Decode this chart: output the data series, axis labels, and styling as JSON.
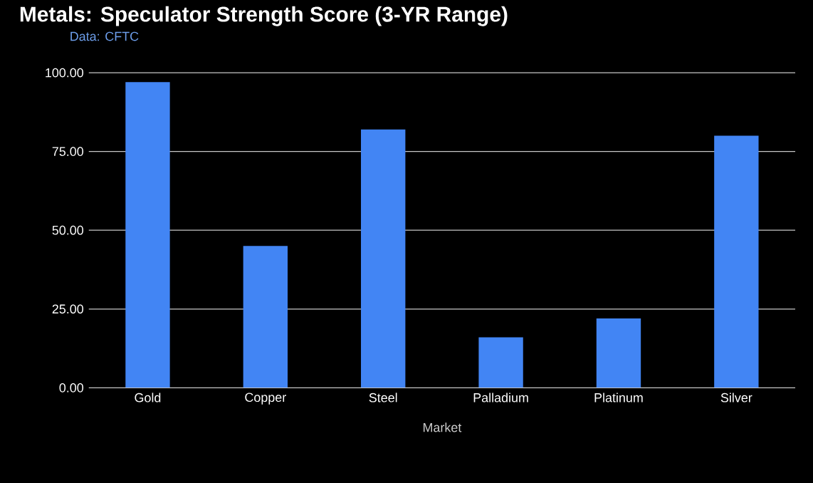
{
  "chart_data": {
    "type": "bar",
    "title": "Metals: Speculator Strength Score (3-YR Range)",
    "annotations": [
      "Data: CFTC"
    ],
    "xlabel": "Market",
    "categories": [
      "Gold",
      "Copper",
      "Steel",
      "Palladium",
      "Platinum",
      "Silver"
    ],
    "values": [
      97,
      45,
      82,
      16,
      22,
      80
    ],
    "color": "#4285f4",
    "ylim": [
      0,
      100
    ],
    "yticks": [
      {
        "value": 0,
        "label": "0.00"
      },
      {
        "value": 25,
        "label": "25.00"
      },
      {
        "value": 50,
        "label": "50.00"
      },
      {
        "value": 75,
        "label": "75.00"
      },
      {
        "value": 100,
        "label": "100.00"
      }
    ],
    "grid": "y"
  }
}
